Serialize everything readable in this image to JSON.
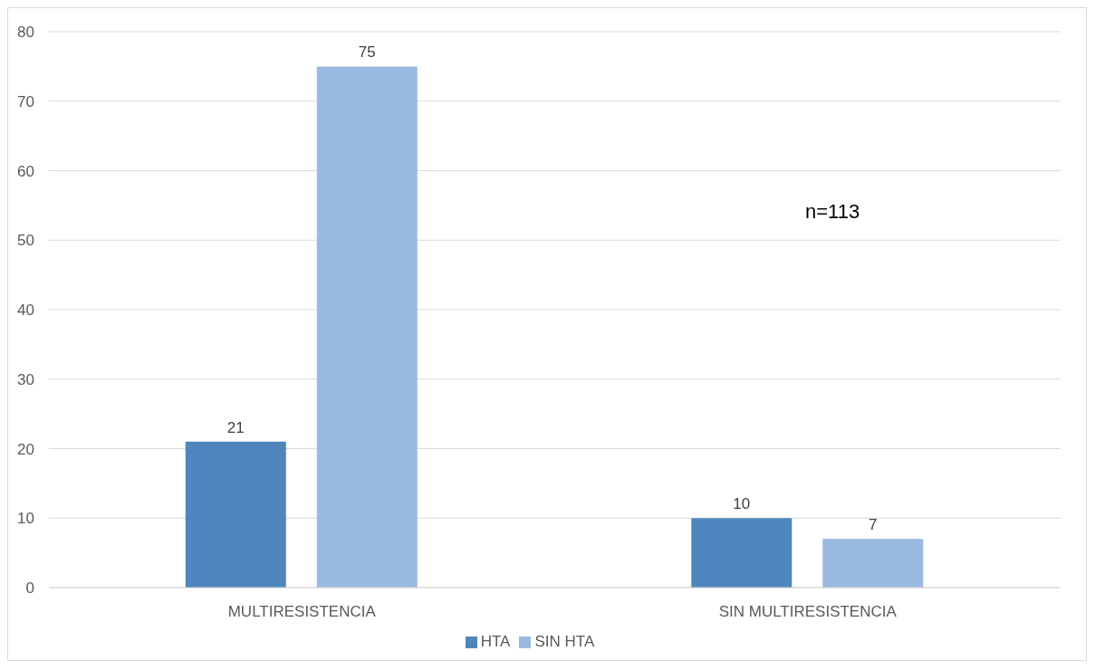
{
  "chart_data": {
    "type": "bar",
    "categories": [
      "MULTIRESISTENCIA",
      "SIN MULTIRESISTENCIA"
    ],
    "series": [
      {
        "name": "HTA",
        "color": "#4f86bd",
        "values": [
          21,
          10
        ]
      },
      {
        "name": "SIN HTA",
        "color": "#9ab9e0",
        "values": [
          75,
          7
        ]
      }
    ],
    "ylim": [
      0,
      80
    ],
    "yticks": [
      0,
      10,
      20,
      30,
      40,
      50,
      60,
      70,
      80
    ],
    "grid": "y",
    "legend": "bottom",
    "data_labels": true,
    "annotations": [
      "n=113"
    ]
  }
}
